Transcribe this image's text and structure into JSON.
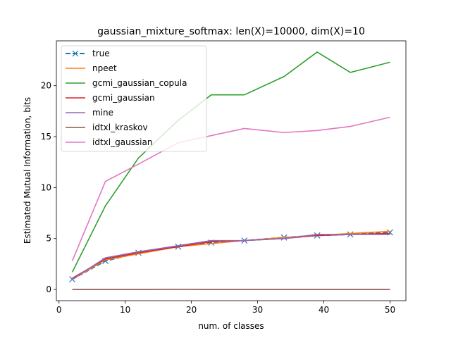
{
  "chart_data": {
    "type": "line",
    "title": "gaussian_mixture_softmax: len(X)=10000, dim(X)=10",
    "xlabel": "num. of classes",
    "ylabel": "Estimated Mutual Information, bits",
    "xlim": [
      -0.4,
      52.4
    ],
    "ylim": [
      -1.1,
      24.4
    ],
    "xticks": [
      0,
      10,
      20,
      30,
      40,
      50
    ],
    "yticks": [
      0,
      5,
      10,
      15,
      20
    ],
    "grid": false,
    "legend_position": "upper-left",
    "x": [
      2,
      7,
      12,
      18,
      23,
      28,
      34,
      39,
      44,
      50
    ],
    "series": [
      {
        "name": "true",
        "color": "#1f77b4",
        "dashed": true,
        "marker": "x",
        "values": [
          1.0,
          2.8,
          3.6,
          4.2,
          4.6,
          4.8,
          5.1,
          5.3,
          5.4,
          5.6
        ]
      },
      {
        "name": "npeet",
        "color": "#ff7f0e",
        "dashed": false,
        "values": [
          1.0,
          2.9,
          3.5,
          4.2,
          4.5,
          4.8,
          5.1,
          5.3,
          5.5,
          5.7
        ]
      },
      {
        "name": "gcmi_gaussian_copula",
        "color": "#2ca02c",
        "dashed": false,
        "values": [
          1.7,
          8.2,
          12.9,
          16.6,
          19.1,
          19.1,
          20.9,
          23.3,
          21.3,
          22.3
        ]
      },
      {
        "name": "gcmi_gaussian",
        "color": "#d62728",
        "dashed": false,
        "values": [
          1.1,
          3.0,
          3.6,
          4.2,
          4.7,
          4.8,
          5.0,
          5.3,
          5.4,
          5.5
        ]
      },
      {
        "name": "mine",
        "color": "#9467bd",
        "dashed": false,
        "values": [
          1.0,
          3.1,
          3.7,
          4.3,
          4.8,
          4.8,
          5.0,
          5.4,
          5.4,
          5.4
        ]
      },
      {
        "name": "idtxl_kraskov",
        "color": "#8c564b",
        "dashed": false,
        "values": [
          0.0,
          0.0,
          0.0,
          0.02,
          0.0,
          0.0,
          0.0,
          0.0,
          0.0,
          0.0
        ]
      },
      {
        "name": "idtxl_gaussian",
        "color": "#e377c2",
        "dashed": false,
        "values": [
          2.8,
          10.6,
          12.3,
          14.4,
          15.1,
          15.8,
          15.4,
          15.6,
          16.0,
          16.9
        ]
      }
    ]
  }
}
